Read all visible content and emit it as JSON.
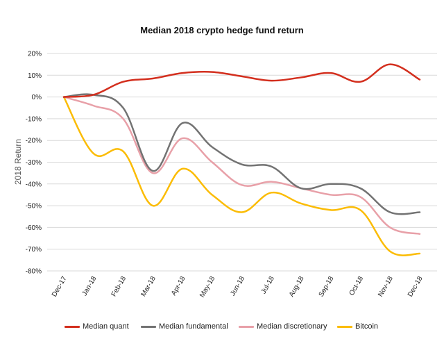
{
  "chart_data": {
    "type": "line",
    "title": "Median 2018 crypto hedge fund return",
    "xlabel": "",
    "ylabel": "2018 Return",
    "categories": [
      "Dec-17",
      "Jan-18",
      "Feb-18",
      "Mar-18",
      "Apr-18",
      "May-18",
      "Jun-18",
      "Jul-18",
      "Aug-18",
      "Sep-18",
      "Oct-18",
      "Nov-18",
      "Dec-18"
    ],
    "yticks": [
      "20%",
      "10%",
      "0%",
      "-10%",
      "-20%",
      "-30%",
      "-40%",
      "-50%",
      "-60%",
      "-70%",
      "-80%"
    ],
    "ylim": [
      -80,
      20
    ],
    "grid": true,
    "legend_position": "bottom",
    "series": [
      {
        "name": "Median quant",
        "color": "#d32f1e",
        "values": [
          0,
          1,
          7,
          8.5,
          11,
          11.5,
          9.5,
          7.5,
          9,
          11,
          7,
          15,
          8
        ]
      },
      {
        "name": "Median fundamental",
        "color": "#737373",
        "values": [
          0,
          1,
          -5,
          -34,
          -12,
          -23,
          -31,
          -32,
          -42,
          -40,
          -42,
          -53,
          -53
        ]
      },
      {
        "name": "Median discretionary",
        "color": "#e8a0a8",
        "values": [
          0,
          -4,
          -10,
          -35,
          -19,
          -30,
          -40.5,
          -39,
          -42,
          -45,
          -46,
          -60,
          -63
        ]
      },
      {
        "name": "Bitcoin",
        "color": "#fbbc05",
        "values": [
          0,
          -26,
          -25,
          -50,
          -33,
          -45,
          -53,
          -44,
          -49,
          -52,
          -52,
          -71,
          -72
        ]
      }
    ]
  }
}
